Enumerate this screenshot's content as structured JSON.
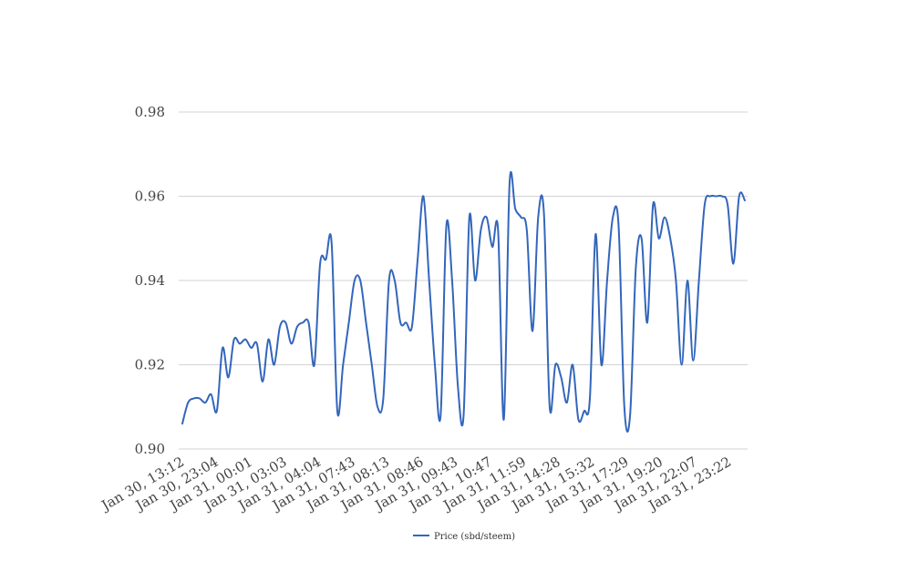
{
  "chart_data": {
    "type": "line",
    "title": "",
    "xlabel": "",
    "ylabel": "",
    "ylim": [
      0.9,
      0.98
    ],
    "yticks": [
      "0.90",
      "0.92",
      "0.94",
      "0.96",
      "0.98"
    ],
    "yticks_values": [
      0.9,
      0.92,
      0.94,
      0.96,
      0.98
    ],
    "xtick_labels": [
      "Jan 30, 13:12",
      "Jan 30, 23:04",
      "Jan 31, 00:01",
      "Jan 31, 03:03",
      "Jan 31, 04:04",
      "Jan 31, 07:43",
      "Jan 31, 08:13",
      "Jan 31, 08:46",
      "Jan 31, 09:43",
      "Jan 31, 10:47",
      "Jan 31, 11:59",
      "Jan 31, 14:28",
      "Jan 31, 15:32",
      "Jan 31, 17:29",
      "Jan 31, 19:20",
      "Jan 31, 22:07",
      "Jan 31, 23:22"
    ],
    "grid": true,
    "legend_position": "bottom-center",
    "series": [
      {
        "name": "Price (sbd/steem)",
        "color": "#3366bb",
        "values": [
          0.906,
          0.911,
          0.912,
          0.912,
          0.911,
          0.913,
          0.909,
          0.924,
          0.917,
          0.926,
          0.925,
          0.926,
          0.924,
          0.925,
          0.916,
          0.926,
          0.92,
          0.929,
          0.93,
          0.925,
          0.929,
          0.93,
          0.93,
          0.92,
          0.944,
          0.945,
          0.949,
          0.909,
          0.92,
          0.93,
          0.94,
          0.94,
          0.93,
          0.92,
          0.91,
          0.912,
          0.94,
          0.94,
          0.93,
          0.93,
          0.929,
          0.945,
          0.96,
          0.94,
          0.92,
          0.908,
          0.953,
          0.94,
          0.915,
          0.908,
          0.955,
          0.94,
          0.952,
          0.955,
          0.948,
          0.952,
          0.907,
          0.963,
          0.957,
          0.955,
          0.952,
          0.928,
          0.955,
          0.956,
          0.91,
          0.92,
          0.917,
          0.911,
          0.92,
          0.907,
          0.909,
          0.912,
          0.951,
          0.92,
          0.94,
          0.955,
          0.953,
          0.91,
          0.908,
          0.943,
          0.95,
          0.93,
          0.958,
          0.95,
          0.955,
          0.95,
          0.94,
          0.92,
          0.94,
          0.921,
          0.94,
          0.958,
          0.96,
          0.96,
          0.96,
          0.958,
          0.944,
          0.96,
          0.959
        ]
      }
    ]
  }
}
